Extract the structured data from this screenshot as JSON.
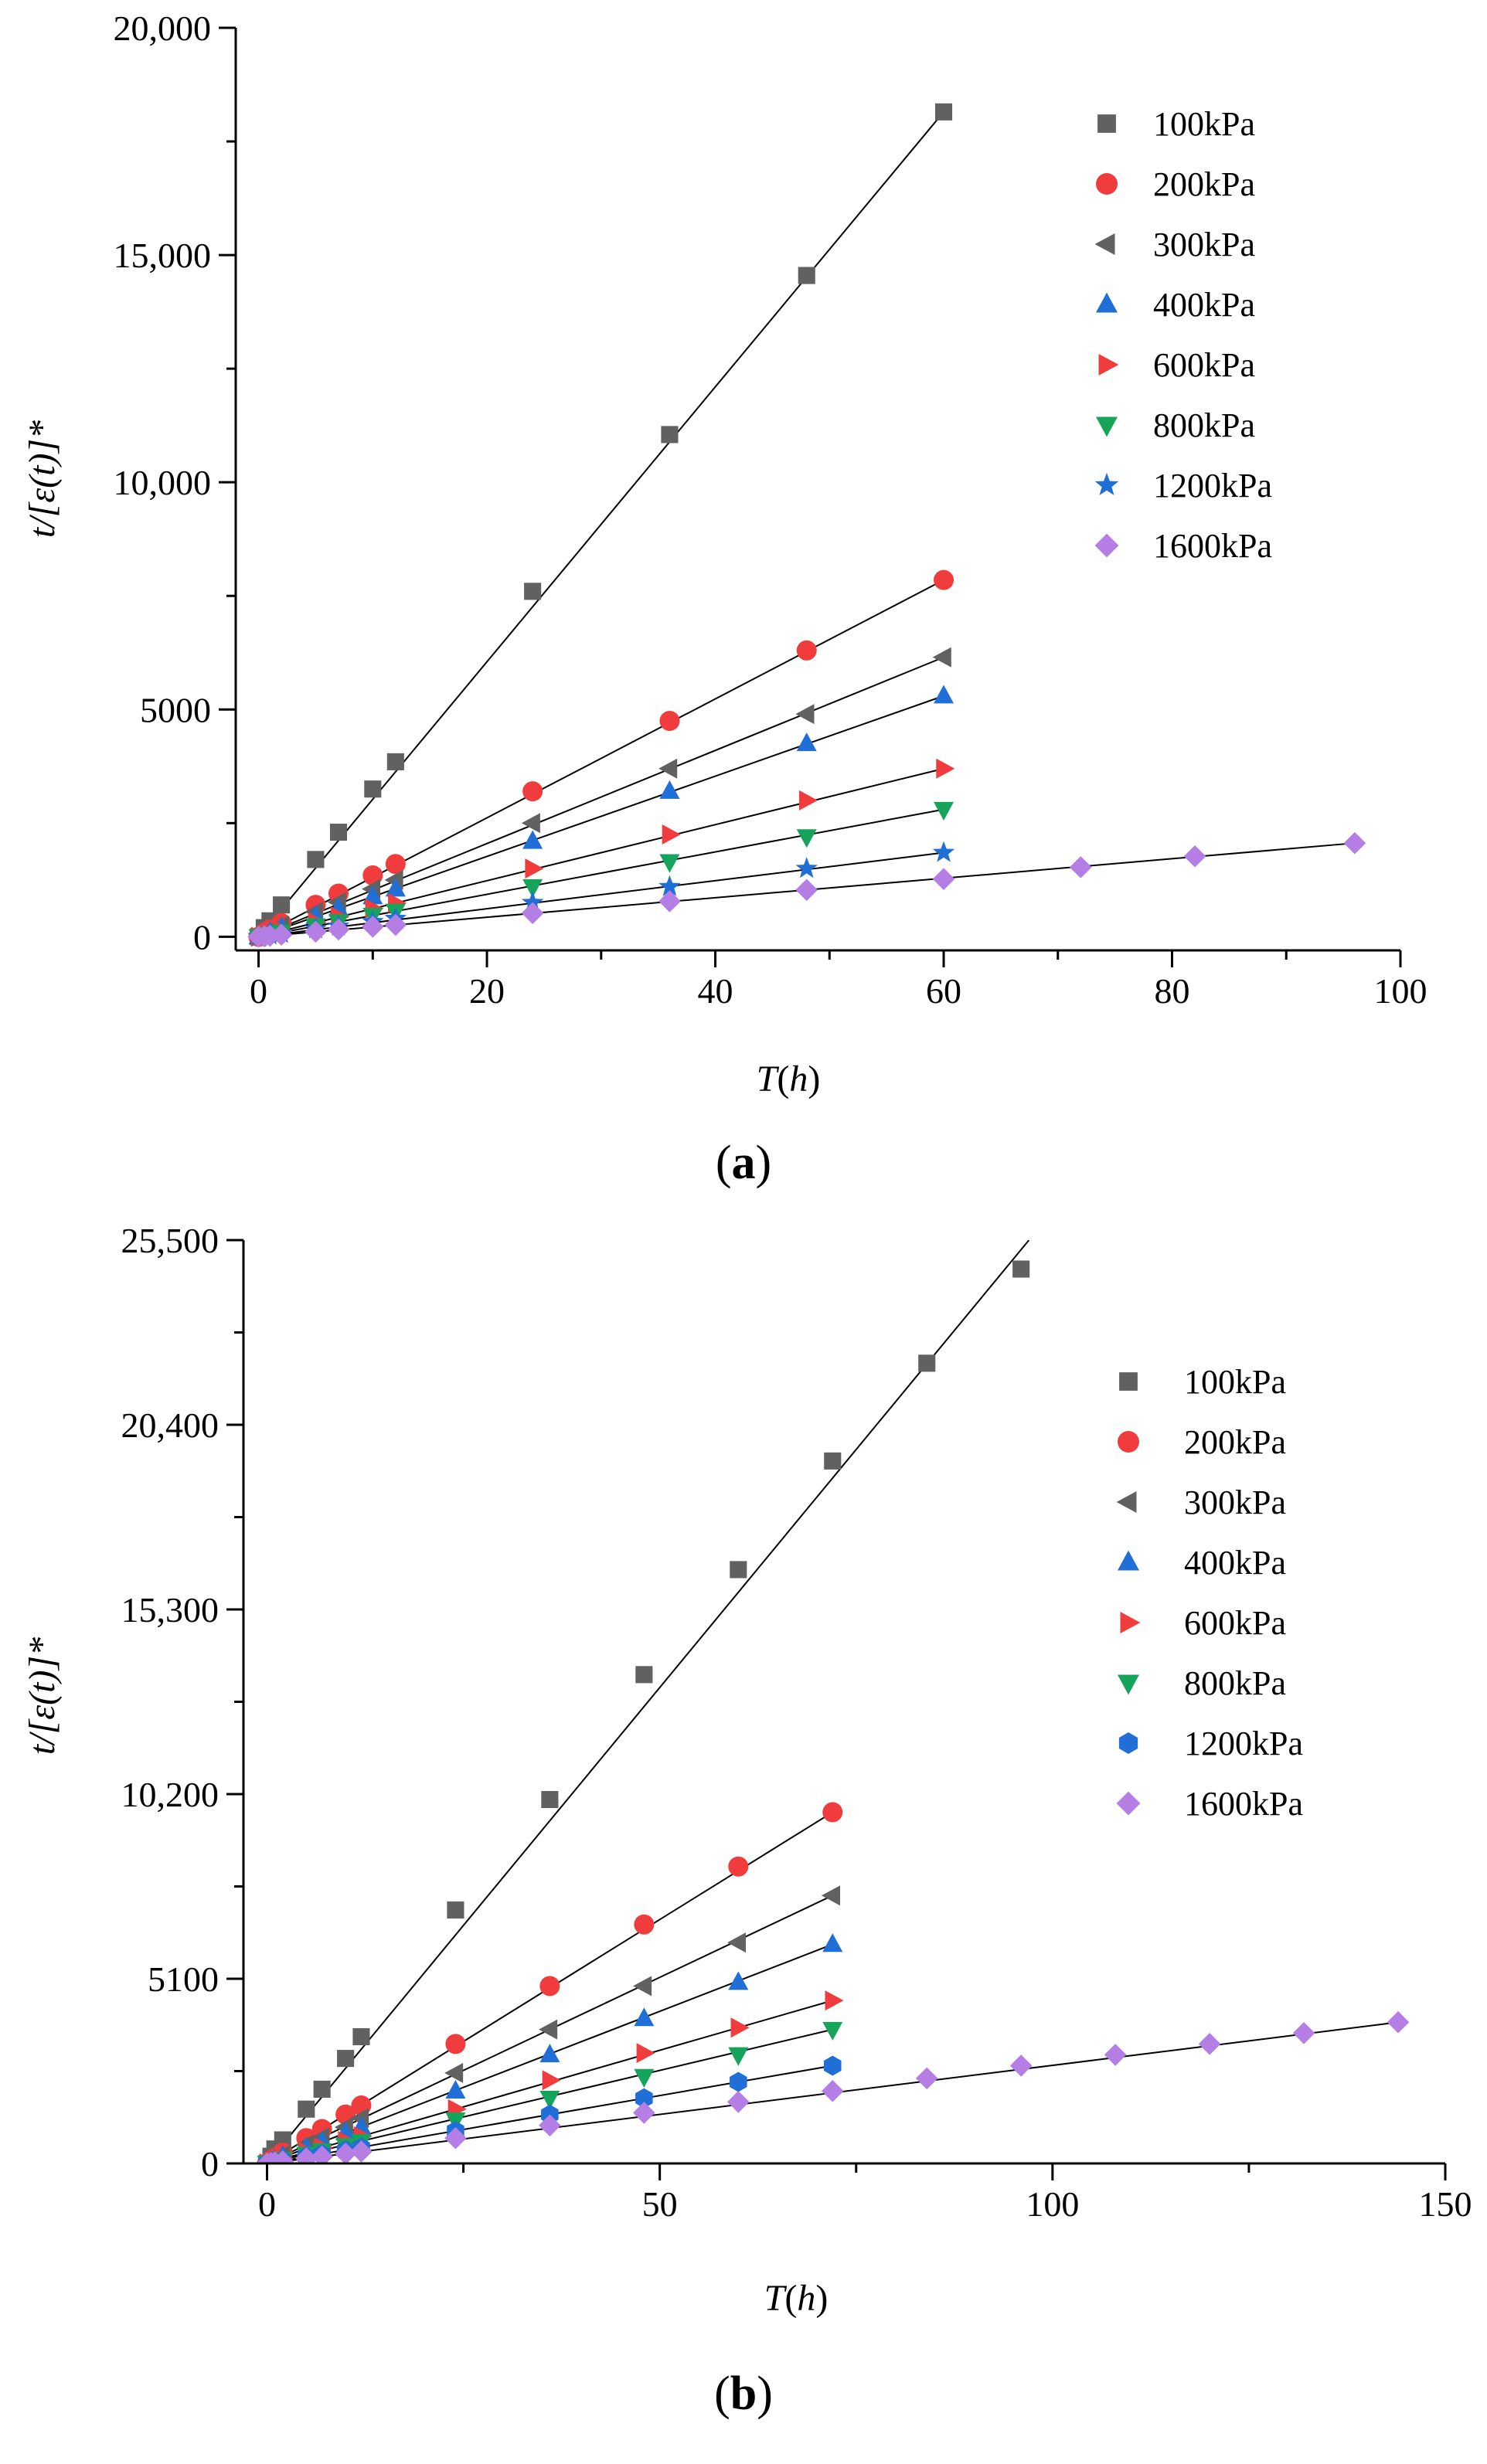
{
  "chart_data": [
    {
      "type": "scatter",
      "panel_label_parts": [
        "(",
        "a",
        ")"
      ],
      "xlabel_parts": [
        "T",
        "(",
        "h",
        ")"
      ],
      "ylabel": "t/[ε(t)]*",
      "xlim": [
        -2,
        100
      ],
      "ylim": [
        -300,
        20000
      ],
      "xticks": [
        0,
        20,
        40,
        60,
        80,
        100
      ],
      "xtick_labels": [
        "0",
        "20",
        "40",
        "60",
        "80",
        "100"
      ],
      "yticks": [
        0,
        5000,
        10000,
        15000,
        20000
      ],
      "ytick_labels": [
        "0",
        "5000",
        "10,000",
        "15,000",
        "20,000"
      ],
      "x_minor_step": 10,
      "y_minor_step": 2500,
      "grid": false,
      "legend_position": "top-right",
      "series": [
        {
          "name": "100kPa",
          "marker": "square",
          "color": "#616161",
          "x": [
            0,
            0.5,
            1,
            2,
            5,
            7,
            10,
            12,
            24,
            36,
            48,
            60
          ],
          "y": [
            0,
            200,
            350,
            700,
            1700,
            2300,
            3250,
            3850,
            7600,
            11050,
            14550,
            18150
          ],
          "fit": [
            [
              0,
              0
            ],
            [
              60,
              18150
            ]
          ]
        },
        {
          "name": "200kPa",
          "marker": "circle",
          "color": "#f03c3c",
          "x": [
            0,
            0.5,
            1,
            2,
            5,
            7,
            10,
            12,
            24,
            36,
            48,
            60
          ],
          "y": [
            0,
            80,
            160,
            300,
            700,
            950,
            1350,
            1600,
            3200,
            4750,
            6300,
            7850
          ],
          "fit": [
            [
              0,
              0
            ],
            [
              60,
              7850
            ]
          ]
        },
        {
          "name": "300kPa",
          "marker": "triangle-left",
          "color": "#616161",
          "x": [
            0,
            0.5,
            1,
            2,
            5,
            7,
            10,
            12,
            24,
            36,
            48,
            60
          ],
          "y": [
            0,
            60,
            120,
            240,
            550,
            760,
            1050,
            1250,
            2500,
            3700,
            4900,
            6150
          ],
          "fit": [
            [
              0,
              0
            ],
            [
              60,
              6150
            ]
          ]
        },
        {
          "name": "400kPa",
          "marker": "triangle-up",
          "color": "#1f6fd6",
          "x": [
            0,
            0.5,
            1,
            2,
            5,
            7,
            10,
            12,
            24,
            36,
            48,
            60
          ],
          "y": [
            0,
            50,
            100,
            200,
            450,
            620,
            880,
            1050,
            2100,
            3200,
            4250,
            5300
          ],
          "fit": [
            [
              0,
              0
            ],
            [
              60,
              5300
            ]
          ]
        },
        {
          "name": "600kPa",
          "marker": "triangle-right",
          "color": "#f03c3c",
          "x": [
            0,
            0.5,
            1,
            2,
            5,
            7,
            10,
            12,
            24,
            36,
            48,
            60
          ],
          "y": [
            0,
            35,
            70,
            140,
            320,
            440,
            620,
            740,
            1500,
            2250,
            3000,
            3700
          ],
          "fit": [
            [
              0,
              0
            ],
            [
              60,
              3700
            ]
          ]
        },
        {
          "name": "800kPa",
          "marker": "triangle-down",
          "color": "#16a35a",
          "x": [
            0,
            0.5,
            1,
            2,
            5,
            7,
            10,
            12,
            24,
            36,
            48,
            60
          ],
          "y": [
            0,
            25,
            50,
            100,
            240,
            330,
            470,
            560,
            1100,
            1650,
            2200,
            2800
          ],
          "fit": [
            [
              0,
              0
            ],
            [
              60,
              2800
            ]
          ]
        },
        {
          "name": "1200kPa",
          "marker": "star",
          "color": "#1f6fd6",
          "x": [
            0,
            0.5,
            1,
            2,
            5,
            7,
            10,
            12,
            24,
            36,
            48,
            60
          ],
          "y": [
            0,
            18,
            35,
            70,
            170,
            230,
            330,
            400,
            750,
            1100,
            1500,
            1850
          ],
          "fit": [
            [
              0,
              0
            ],
            [
              60,
              1850
            ]
          ]
        },
        {
          "name": "1600kPa",
          "marker": "diamond",
          "color": "#b47ee5",
          "x": [
            0,
            0.5,
            1,
            2,
            5,
            7,
            10,
            12,
            24,
            36,
            48,
            60,
            72,
            82,
            96
          ],
          "y": [
            0,
            10,
            20,
            45,
            110,
            160,
            220,
            260,
            520,
            780,
            1030,
            1270,
            1530,
            1770,
            2060
          ],
          "fit": [
            [
              0,
              0
            ],
            [
              96,
              2060
            ]
          ]
        }
      ]
    },
    {
      "type": "scatter",
      "panel_label_parts": [
        "(",
        "b",
        ")"
      ],
      "xlabel_parts": [
        "T",
        "(",
        "h",
        ")"
      ],
      "ylabel": "t/[ε(t)]*",
      "xlim": [
        -3,
        150
      ],
      "ylim": [
        0,
        25500
      ],
      "xticks": [
        0,
        50,
        100,
        150
      ],
      "xtick_labels": [
        "0",
        "50",
        "100",
        "150"
      ],
      "yticks": [
        0,
        5100,
        10200,
        15300,
        20400,
        25500
      ],
      "ytick_labels": [
        "0",
        "5100",
        "10,200",
        "15,300",
        "20,400",
        "25,500"
      ],
      "x_minor_step": 25,
      "y_minor_step": 2550,
      "grid": false,
      "legend_position": "right",
      "series": [
        {
          "name": "100kPa",
          "marker": "square",
          "color": "#616161",
          "x": [
            0,
            0.5,
            1,
            2,
            5,
            7,
            10,
            12,
            24,
            36,
            48,
            60,
            72,
            84,
            96
          ],
          "y": [
            0,
            200,
            400,
            650,
            1500,
            2050,
            2900,
            3500,
            7000,
            10050,
            13500,
            16400,
            19400,
            22100,
            24700
          ],
          "fit": [
            [
              0,
              0
            ],
            [
              97,
              25500
            ]
          ]
        },
        {
          "name": "200kPa",
          "marker": "circle",
          "color": "#f03c3c",
          "x": [
            0,
            0.5,
            1,
            2,
            5,
            7,
            10,
            12,
            24,
            36,
            48,
            60,
            72
          ],
          "y": [
            0,
            80,
            150,
            300,
            700,
            950,
            1350,
            1600,
            3300,
            4900,
            6600,
            8200,
            9700
          ],
          "fit": [
            [
              0,
              0
            ],
            [
              72,
              9700
            ]
          ]
        },
        {
          "name": "300kPa",
          "marker": "triangle-left",
          "color": "#616161",
          "x": [
            0,
            0.5,
            1,
            2,
            5,
            7,
            10,
            12,
            24,
            36,
            48,
            60,
            72
          ],
          "y": [
            0,
            60,
            120,
            230,
            520,
            720,
            1000,
            1250,
            2500,
            3700,
            4900,
            6100,
            7400
          ],
          "fit": [
            [
              0,
              0
            ],
            [
              72,
              7400
            ]
          ]
        },
        {
          "name": "400kPa",
          "marker": "triangle-up",
          "color": "#1f6fd6",
          "x": [
            0,
            0.5,
            1,
            2,
            5,
            7,
            10,
            12,
            24,
            36,
            48,
            60,
            72
          ],
          "y": [
            0,
            50,
            100,
            200,
            430,
            600,
            850,
            1000,
            2000,
            3000,
            4000,
            5000,
            6050
          ],
          "fit": [
            [
              0,
              0
            ],
            [
              72,
              6050
            ]
          ]
        },
        {
          "name": "600kPa",
          "marker": "triangle-right",
          "color": "#f03c3c",
          "x": [
            0,
            0.5,
            1,
            2,
            5,
            7,
            10,
            12,
            24,
            36,
            48,
            60,
            72
          ],
          "y": [
            0,
            35,
            70,
            140,
            320,
            440,
            620,
            750,
            1500,
            2300,
            3050,
            3750,
            4500
          ],
          "fit": [
            [
              0,
              0
            ],
            [
              72,
              4500
            ]
          ]
        },
        {
          "name": "800kPa",
          "marker": "triangle-down",
          "color": "#16a35a",
          "x": [
            0,
            0.5,
            1,
            2,
            5,
            7,
            10,
            12,
            24,
            36,
            48,
            60,
            72
          ],
          "y": [
            0,
            25,
            55,
            110,
            250,
            350,
            490,
            600,
            1200,
            1800,
            2400,
            3000,
            3700
          ],
          "fit": [
            [
              0,
              0
            ],
            [
              72,
              3700
            ]
          ]
        },
        {
          "name": "1200kPa",
          "marker": "hexagon",
          "color": "#1f6fd6",
          "x": [
            0,
            0.5,
            1,
            2,
            5,
            7,
            10,
            12,
            24,
            36,
            48,
            60,
            72
          ],
          "y": [
            0,
            20,
            40,
            80,
            190,
            260,
            360,
            440,
            900,
            1350,
            1800,
            2250,
            2700
          ],
          "fit": [
            [
              0,
              0
            ],
            [
              72,
              2700
            ]
          ]
        },
        {
          "name": "1600kPa",
          "marker": "diamond",
          "color": "#b47ee5",
          "x": [
            0,
            0.5,
            1,
            2,
            5,
            7,
            10,
            12,
            24,
            36,
            48,
            60,
            72,
            84,
            96,
            108,
            120,
            132,
            144
          ],
          "y": [
            0,
            15,
            30,
            60,
            140,
            190,
            270,
            330,
            700,
            1050,
            1400,
            1700,
            2000,
            2350,
            2700,
            3000,
            3300,
            3600,
            3900
          ],
          "fit": [
            [
              0,
              0
            ],
            [
              144,
              3900
            ]
          ]
        }
      ]
    }
  ]
}
